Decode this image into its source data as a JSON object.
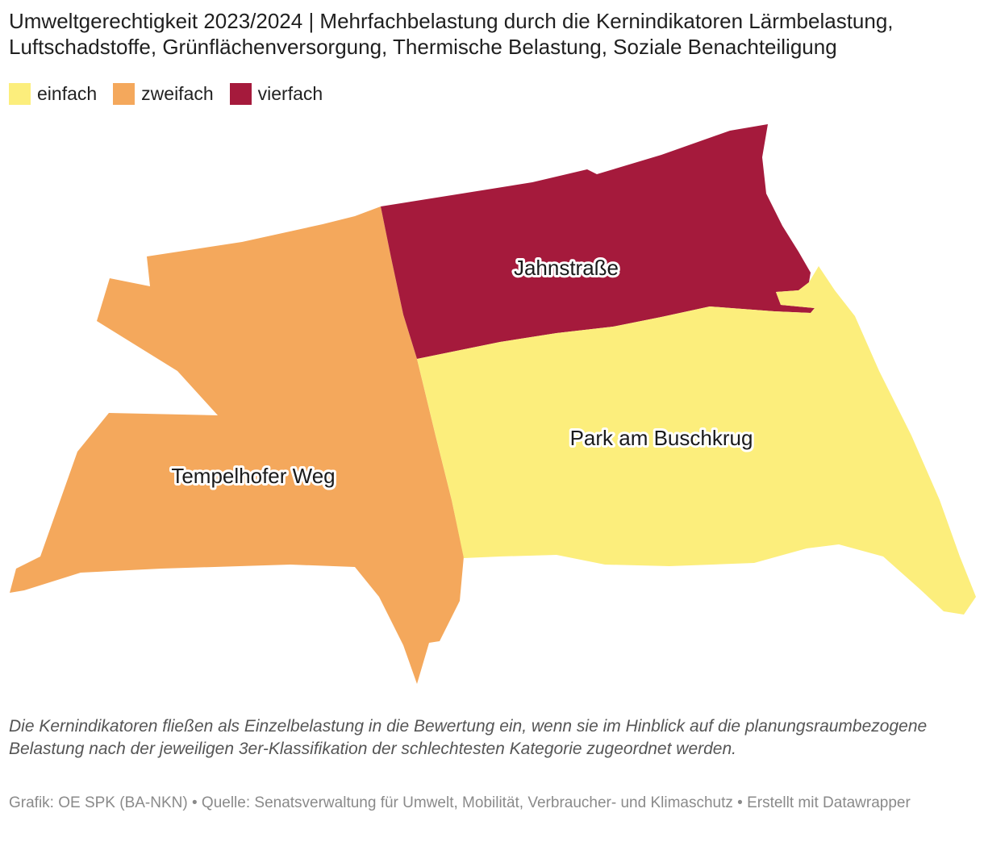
{
  "title": "Umweltgerechtigkeit 2023/2024 | Mehrfachbelastung durch die Kernindikatoren Lärmbelastung, Luftschadstoffe, Grünflächenversorgung, Thermische Belastung, Soziale Benachteiligung",
  "legend": [
    {
      "label": "einfach",
      "color": "#fcee7c"
    },
    {
      "label": "zweifach",
      "color": "#f4a85c"
    },
    {
      "label": "vierfach",
      "color": "#a51a3c"
    }
  ],
  "regions": [
    {
      "name": "Jahnstraße",
      "category": "vierfach",
      "color": "#a51a3c"
    },
    {
      "name": "Park am Buschkrug",
      "category": "einfach",
      "color": "#fcee7c"
    },
    {
      "name": "Tempelhofer Weg",
      "category": "zweifach",
      "color": "#f4a85c"
    }
  ],
  "notes": "Die Kernindikatoren fließen als Einzelbelastung in die Bewertung ein, wenn sie im Hinblick auf die planungsraumbezogene Belastung nach der jeweiligen 3er-Klassifikation der schlechtesten Kategorie zugeordnet werden.",
  "source": "Grafik: OE SPK (BA-NKN) • Quelle: Senatsverwaltung für Umwelt, Mobilität, Verbraucher- und Klimaschutz  • Erstellt mit Datawrapper"
}
